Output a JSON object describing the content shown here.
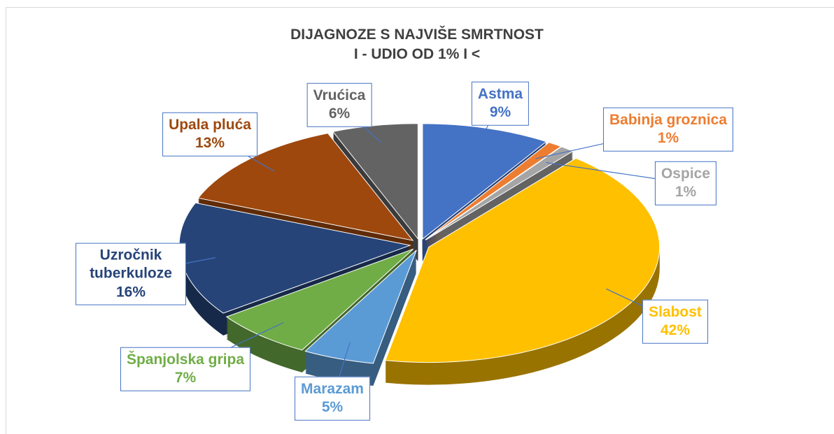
{
  "chart_data": {
    "type": "pie",
    "title": [
      "DIJAGNOZE S NAJVIŠE SMRTNOST",
      "I - UDIO OD 1% I <"
    ],
    "categories": [
      "Astma",
      "Babinja groznica",
      "Ospice",
      "Slabost",
      "Marazam",
      "Španjolska gripa",
      "Uzročnik tuberkuloze",
      "Upala pluća",
      "Vrućica"
    ],
    "values": [
      9,
      1,
      1,
      42,
      5,
      7,
      16,
      13,
      6
    ],
    "value_labels": [
      "9%",
      "1%",
      "1%",
      "42%",
      "5%",
      "7%",
      "16%",
      "13%",
      "6%"
    ],
    "colors": [
      "#4472c4",
      "#ed7d31",
      "#a5a5a5",
      "#ffc000",
      "#5b9bd5",
      "#70ad47",
      "#264478",
      "#9e480e",
      "#636363"
    ]
  }
}
